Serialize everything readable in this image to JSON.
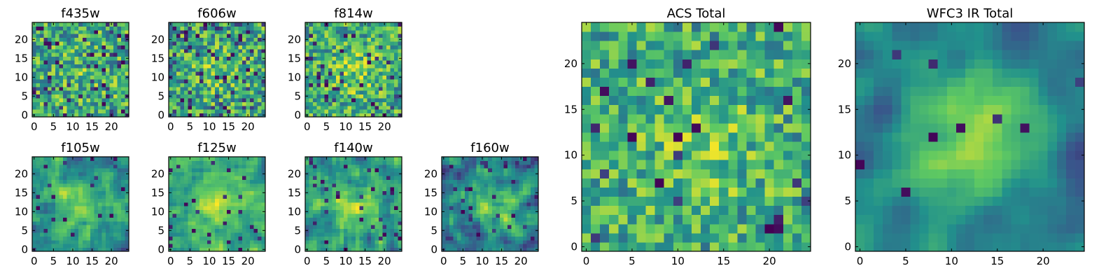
{
  "chart_data": {
    "type": "heatmap",
    "grid_size": 25,
    "colormap": [
      "#440154",
      "#3b528b",
      "#21918c",
      "#5ec962",
      "#fde725"
    ],
    "panels": [
      {
        "id": "f435w",
        "title": "f435w",
        "xticks": [
          "0",
          "5",
          "10",
          "15",
          "20"
        ],
        "yticks": [
          "0",
          "5",
          "10",
          "15",
          "20"
        ],
        "seed": 11,
        "blob_strength": 0.05,
        "smooth": 0,
        "noise": 0.3,
        "base": 0.62,
        "dark_prob": 0.1
      },
      {
        "id": "f606w",
        "title": "f606w",
        "xticks": [
          "0",
          "5",
          "10",
          "15",
          "20"
        ],
        "yticks": [
          "0",
          "5",
          "10",
          "15",
          "20"
        ],
        "seed": 23,
        "blob_strength": 0.12,
        "smooth": 0,
        "noise": 0.3,
        "base": 0.6,
        "dark_prob": 0.09
      },
      {
        "id": "f814w",
        "title": "f814w",
        "xticks": [
          "0",
          "5",
          "10",
          "15",
          "20"
        ],
        "yticks": [
          "0",
          "5",
          "10",
          "15",
          "20"
        ],
        "seed": 37,
        "blob_strength": 0.16,
        "smooth": 0,
        "noise": 0.28,
        "base": 0.62,
        "dark_prob": 0.07
      },
      {
        "id": "f105w",
        "title": "f105w",
        "xticks": [
          "0",
          "5",
          "10",
          "15",
          "20"
        ],
        "yticks": [
          "0",
          "5",
          "10",
          "15",
          "20"
        ],
        "seed": 41,
        "blob_strength": 0.3,
        "smooth": 1,
        "noise": 0.3,
        "base": 0.5,
        "dark_prob": 0.04
      },
      {
        "id": "f125w",
        "title": "f125w",
        "xticks": [
          "0",
          "5",
          "10",
          "15",
          "20"
        ],
        "yticks": [
          "0",
          "5",
          "10",
          "15",
          "20"
        ],
        "seed": 53,
        "blob_strength": 0.25,
        "smooth": 1,
        "noise": 0.26,
        "base": 0.6,
        "dark_prob": 0.03
      },
      {
        "id": "f140w",
        "title": "f140w",
        "xticks": [
          "0",
          "5",
          "10",
          "15",
          "20"
        ],
        "yticks": [
          "0",
          "5",
          "10",
          "15",
          "20"
        ],
        "seed": 67,
        "blob_strength": 0.22,
        "smooth": 1,
        "noise": 0.3,
        "base": 0.52,
        "dark_prob": 0.05
      },
      {
        "id": "f160w",
        "title": "f160w",
        "xticks": [
          "0",
          "5",
          "10",
          "15",
          "20"
        ],
        "yticks": [
          "0",
          "5",
          "10",
          "15",
          "20"
        ],
        "seed": 79,
        "blob_strength": 0.35,
        "smooth": 1,
        "noise": 0.3,
        "base": 0.42,
        "dark_prob": 0.05
      },
      {
        "id": "acs-total",
        "title": "ACS Total",
        "xticks": [
          "0",
          "5",
          "10",
          "15",
          "20"
        ],
        "yticks": [
          "0",
          "5",
          "10",
          "15",
          "20"
        ],
        "seed": 97,
        "blob_strength": 0.15,
        "smooth": 0,
        "noise": 0.26,
        "base": 0.62,
        "dark_prob": 0.04
      },
      {
        "id": "wfc3-ir-total",
        "title": "WFC3 IR Total",
        "xticks": [
          "0",
          "5",
          "10",
          "15",
          "20"
        ],
        "yticks": [
          "0",
          "5",
          "10",
          "15",
          "20"
        ],
        "seed": 113,
        "blob_strength": 0.45,
        "smooth": 2,
        "noise": 0.2,
        "base": 0.4,
        "dark_prob": 0.02
      }
    ]
  }
}
